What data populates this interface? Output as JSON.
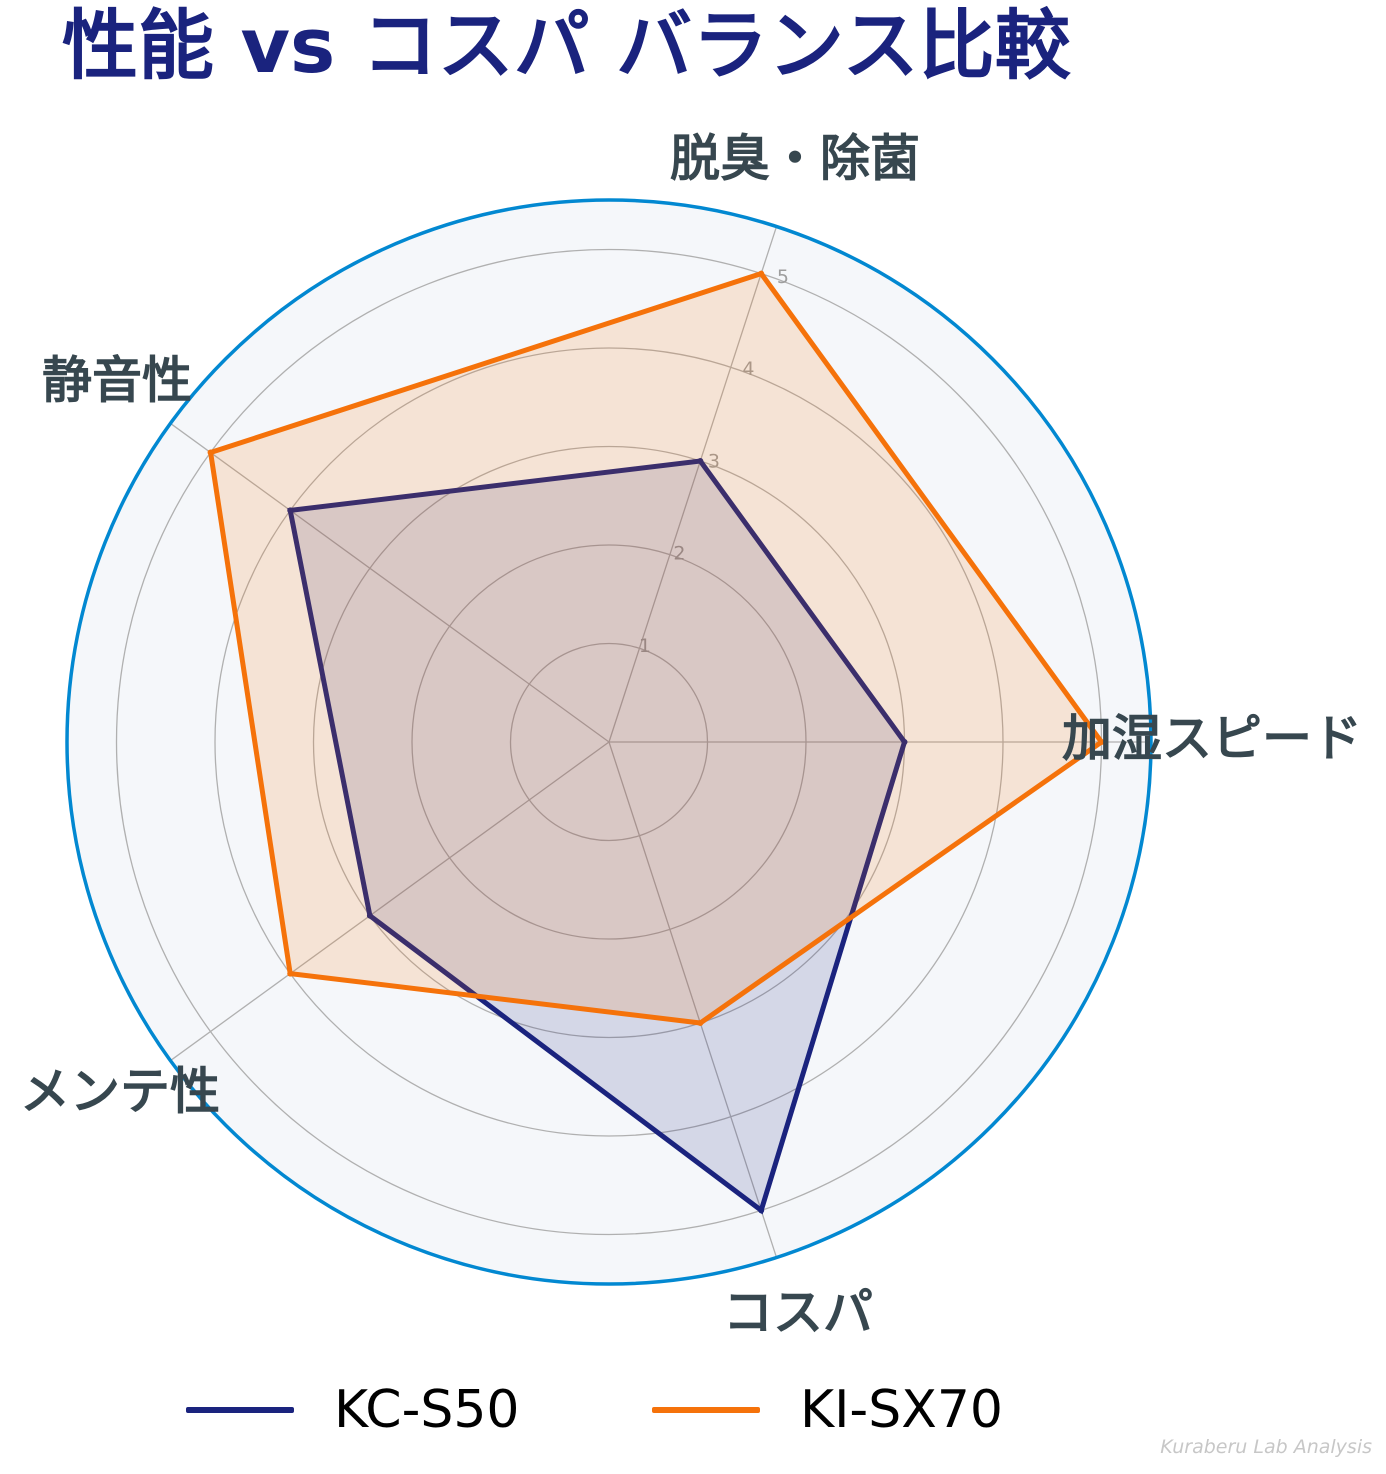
{
  "chart_data": {
    "type": "radar",
    "title": "性能 vs コスパ バランス比較",
    "axes": [
      "加湿スピード",
      "脱臭・除菌",
      "静音性",
      "メンテ性",
      "コスパ"
    ],
    "rticks": [
      "1",
      "2",
      "3",
      "4",
      "5"
    ],
    "rlim": [
      0,
      5.5
    ],
    "grid": true,
    "legend_position": "bottom",
    "series": [
      {
        "name": "KC-S50",
        "values": [
          3,
          3,
          4,
          3,
          5
        ],
        "color": "#1a237e"
      },
      {
        "name": "KI-SX70",
        "values": [
          5,
          5,
          5,
          4,
          3
        ],
        "color": "#f5720a"
      }
    ]
  },
  "colors": {
    "title": "#1a237e",
    "axis_label": "#37474f",
    "outer_ring": "#0288d1",
    "plot_background": "#f5f7fa",
    "grid": "#b0b0b0"
  },
  "watermark": "Kuraberu Lab Analysis"
}
